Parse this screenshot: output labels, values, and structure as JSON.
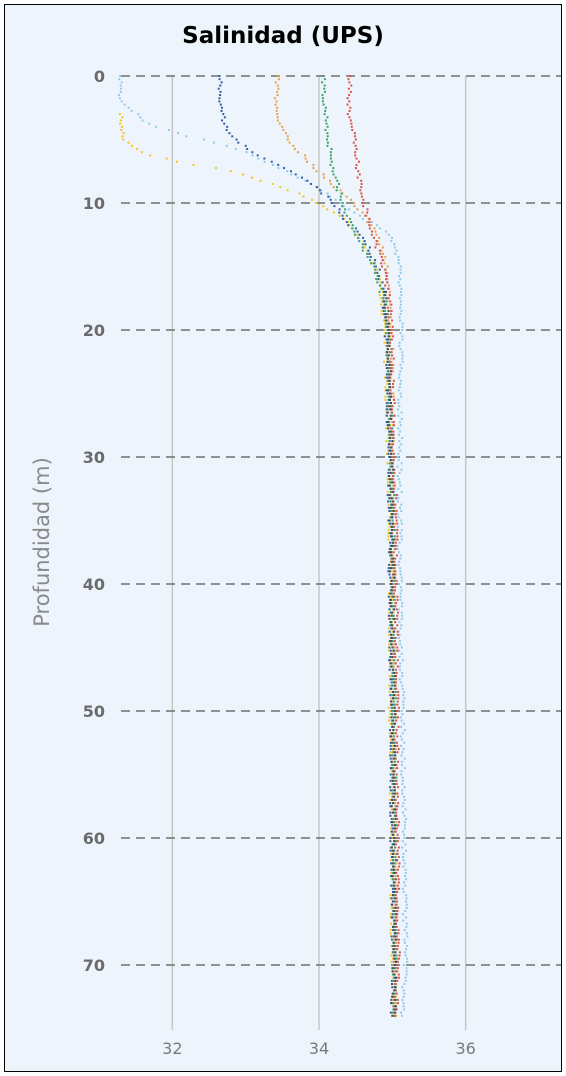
{
  "chart_data": {
    "type": "scatter",
    "title": "Salinidad (UPS)",
    "xlabel": "",
    "ylabel": "Profundidad (m)",
    "xlim": [
      31.3,
      37.3
    ],
    "ylim": [
      0,
      75
    ],
    "y_inverted": true,
    "x_ticks": [
      32,
      34,
      36
    ],
    "y_ticks": [
      0,
      10,
      20,
      30,
      40,
      50,
      60,
      70
    ],
    "grid": {
      "x": "solid vertical lines",
      "y": "dashed horizontal lines"
    },
    "legend": "none",
    "background_color": "#eef4fb",
    "series": [
      {
        "color": "#f5c518",
        "points": [
          [
            31.3,
            3
          ],
          [
            31.3,
            4
          ],
          [
            31.35,
            5
          ],
          [
            31.45,
            5.5
          ],
          [
            31.6,
            6
          ],
          [
            31.75,
            6.3
          ],
          [
            31.9,
            6.5
          ],
          [
            32.1,
            6.8
          ],
          [
            32.3,
            7.0
          ],
          [
            32.55,
            7.2
          ],
          [
            32.8,
            7.5
          ],
          [
            33.1,
            8.0
          ],
          [
            33.4,
            8.6
          ],
          [
            33.7,
            9.2
          ],
          [
            33.95,
            9.9
          ],
          [
            34.15,
            10.6
          ],
          [
            34.35,
            11.3
          ],
          [
            34.5,
            12.2
          ],
          [
            34.6,
            13
          ],
          [
            34.7,
            14
          ],
          [
            34.78,
            15
          ],
          [
            34.85,
            17
          ],
          [
            34.9,
            20
          ],
          [
            34.93,
            25
          ],
          [
            34.95,
            30
          ],
          [
            34.97,
            35
          ],
          [
            34.98,
            40
          ],
          [
            34.98,
            45
          ],
          [
            34.98,
            50
          ],
          [
            34.99,
            55
          ],
          [
            35.0,
            60
          ],
          [
            35.0,
            65
          ],
          [
            35.01,
            70
          ],
          [
            35.02,
            72
          ],
          [
            35.04,
            74
          ]
        ]
      },
      {
        "color": "#8ec9f0",
        "points": [
          [
            31.3,
            0
          ],
          [
            31.3,
            1
          ],
          [
            31.3,
            2
          ],
          [
            31.42,
            2.6
          ],
          [
            31.55,
            3.2
          ],
          [
            31.7,
            3.8
          ],
          [
            31.9,
            4.2
          ],
          [
            32.1,
            4.6
          ],
          [
            32.4,
            5.0
          ],
          [
            32.7,
            5.4
          ],
          [
            33.0,
            6.0
          ],
          [
            33.3,
            6.8
          ],
          [
            33.6,
            7.6
          ],
          [
            33.85,
            8.4
          ],
          [
            34.1,
            9.2
          ],
          [
            34.3,
            10
          ],
          [
            34.5,
            10.9
          ],
          [
            34.75,
            11.6
          ],
          [
            34.95,
            12.4
          ],
          [
            35.05,
            13.5
          ],
          [
            35.1,
            15
          ],
          [
            35.12,
            18
          ],
          [
            35.12,
            20
          ],
          [
            35.11,
            25
          ],
          [
            35.1,
            30
          ],
          [
            35.1,
            35
          ],
          [
            35.1,
            40
          ],
          [
            35.12,
            45
          ],
          [
            35.14,
            50
          ],
          [
            35.15,
            55
          ],
          [
            35.16,
            60
          ],
          [
            35.17,
            65
          ],
          [
            35.18,
            70
          ],
          [
            35.16,
            72
          ],
          [
            35.14,
            74
          ]
        ]
      },
      {
        "color": "#2e5fa7",
        "points": [
          [
            32.65,
            0
          ],
          [
            32.65,
            1
          ],
          [
            32.66,
            2
          ],
          [
            32.68,
            3
          ],
          [
            32.72,
            4
          ],
          [
            32.82,
            4.8
          ],
          [
            32.95,
            5.4
          ],
          [
            33.1,
            6.0
          ],
          [
            33.3,
            6.6
          ],
          [
            33.5,
            7.2
          ],
          [
            33.7,
            7.8
          ],
          [
            33.9,
            8.5
          ],
          [
            34.05,
            9.2
          ],
          [
            34.2,
            10
          ],
          [
            34.3,
            10.8
          ],
          [
            34.4,
            11.6
          ],
          [
            34.55,
            12.4
          ],
          [
            34.65,
            13.3
          ],
          [
            34.72,
            14.2
          ],
          [
            34.8,
            15.2
          ],
          [
            34.86,
            16.5
          ],
          [
            34.9,
            18
          ],
          [
            34.92,
            20
          ],
          [
            34.95,
            25
          ],
          [
            34.96,
            30
          ],
          [
            34.97,
            35
          ],
          [
            34.97,
            40
          ],
          [
            34.98,
            45
          ],
          [
            34.99,
            50
          ],
          [
            35.0,
            55
          ],
          [
            35.0,
            60
          ],
          [
            35.01,
            65
          ],
          [
            35.02,
            70
          ],
          [
            35.01,
            72
          ],
          [
            35.0,
            74
          ]
        ]
      },
      {
        "color": "#e6a04a",
        "points": [
          [
            33.45,
            0
          ],
          [
            33.42,
            1
          ],
          [
            33.41,
            2
          ],
          [
            33.43,
            3
          ],
          [
            33.48,
            4
          ],
          [
            33.55,
            4.8
          ],
          [
            33.65,
            5.5
          ],
          [
            33.78,
            6.2
          ],
          [
            33.9,
            7.0
          ],
          [
            34.05,
            7.8
          ],
          [
            34.2,
            8.6
          ],
          [
            34.35,
            9.4
          ],
          [
            34.5,
            10.2
          ],
          [
            34.62,
            11
          ],
          [
            34.72,
            11.8
          ],
          [
            34.8,
            12.6
          ],
          [
            34.86,
            13.5
          ],
          [
            34.9,
            14.5
          ],
          [
            34.93,
            16
          ],
          [
            34.96,
            18
          ],
          [
            34.98,
            20
          ],
          [
            34.99,
            25
          ],
          [
            35.0,
            30
          ],
          [
            35.01,
            35
          ],
          [
            35.02,
            40
          ],
          [
            35.02,
            45
          ],
          [
            35.03,
            50
          ],
          [
            35.03,
            55
          ],
          [
            35.04,
            60
          ],
          [
            35.04,
            65
          ],
          [
            35.05,
            70
          ],
          [
            35.04,
            72
          ],
          [
            35.03,
            74
          ]
        ]
      },
      {
        "color": "#3aa26a",
        "points": [
          [
            34.05,
            0
          ],
          [
            34.06,
            1
          ],
          [
            34.07,
            2
          ],
          [
            34.09,
            3
          ],
          [
            34.11,
            4
          ],
          [
            34.13,
            5
          ],
          [
            34.15,
            6
          ],
          [
            34.18,
            7
          ],
          [
            34.22,
            8
          ],
          [
            34.27,
            9
          ],
          [
            34.33,
            10
          ],
          [
            34.38,
            11
          ],
          [
            34.45,
            12
          ],
          [
            34.55,
            13
          ],
          [
            34.65,
            14
          ],
          [
            34.75,
            15
          ],
          [
            34.83,
            16.5
          ],
          [
            34.9,
            18
          ],
          [
            34.94,
            20
          ],
          [
            34.97,
            25
          ],
          [
            34.99,
            30
          ],
          [
            35.0,
            35
          ],
          [
            35.01,
            40
          ],
          [
            35.02,
            45
          ],
          [
            35.02,
            50
          ],
          [
            35.03,
            55
          ],
          [
            35.03,
            60
          ],
          [
            35.04,
            65
          ],
          [
            35.04,
            70
          ],
          [
            35.03,
            72
          ],
          [
            35.02,
            74
          ]
        ]
      },
      {
        "color": "#d9534f",
        "points": [
          [
            34.42,
            0
          ],
          [
            34.41,
            1
          ],
          [
            34.4,
            2
          ],
          [
            34.42,
            3
          ],
          [
            34.45,
            4
          ],
          [
            34.48,
            5
          ],
          [
            34.5,
            6
          ],
          [
            34.52,
            7
          ],
          [
            34.55,
            8
          ],
          [
            34.58,
            9
          ],
          [
            34.62,
            10
          ],
          [
            34.66,
            11
          ],
          [
            34.7,
            12
          ],
          [
            34.76,
            13
          ],
          [
            34.82,
            14
          ],
          [
            34.88,
            15
          ],
          [
            34.92,
            16.5
          ],
          [
            34.96,
            18
          ],
          [
            34.98,
            20
          ],
          [
            35.0,
            25
          ],
          [
            35.02,
            30
          ],
          [
            35.04,
            35
          ],
          [
            35.05,
            40
          ],
          [
            35.05,
            45
          ],
          [
            35.06,
            50
          ],
          [
            35.06,
            55
          ],
          [
            35.07,
            60
          ],
          [
            35.07,
            65
          ],
          [
            35.08,
            70
          ],
          [
            35.06,
            72
          ],
          [
            35.04,
            74
          ]
        ]
      },
      {
        "color": "#4a4a4a",
        "points": [
          [
            34.9,
            17
          ],
          [
            34.94,
            20
          ],
          [
            34.96,
            25
          ],
          [
            34.98,
            30
          ],
          [
            34.99,
            35
          ],
          [
            35.0,
            40
          ],
          [
            35.0,
            45
          ],
          [
            35.01,
            50
          ],
          [
            35.01,
            55
          ],
          [
            35.02,
            60
          ],
          [
            35.02,
            65
          ],
          [
            35.03,
            70
          ],
          [
            35.02,
            72
          ],
          [
            35.01,
            74
          ]
        ]
      }
    ]
  }
}
